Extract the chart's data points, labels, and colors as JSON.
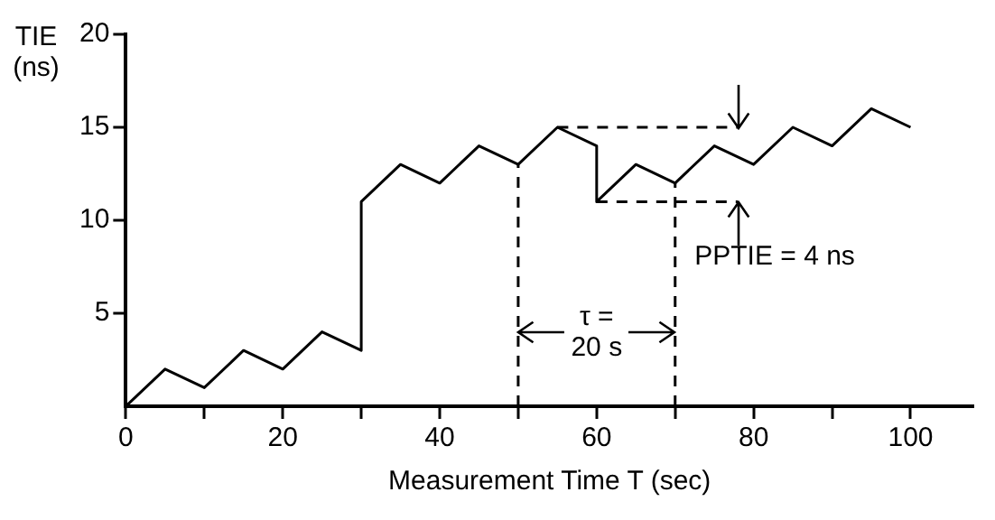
{
  "chart_data": {
    "type": "line",
    "xlabel": "Measurement Time T (sec)",
    "ylabel": "TIE (ns)",
    "series": [
      {
        "color": "#000000",
        "x": [
          0,
          5,
          10,
          15,
          20,
          25,
          30,
          30,
          35,
          40,
          45,
          50,
          55,
          60,
          60,
          65,
          70,
          75,
          80,
          85,
          90,
          95,
          100
        ],
        "values": [
          0,
          2,
          1,
          3,
          2,
          4,
          3,
          11,
          13,
          12,
          14,
          13,
          15,
          14,
          11,
          13,
          12,
          14,
          13,
          15,
          14,
          16,
          15
        ]
      },
      {
        "color": "#000000",
        "line_style": "dashed",
        "x": [
          50,
          50,
          null,
          70,
          70,
          null,
          55,
          78,
          null,
          60,
          78
        ],
        "values": [
          0,
          13,
          null,
          0,
          12,
          null,
          15,
          15,
          null,
          11,
          11
        ]
      }
    ],
    "xlim": [
      0,
      108
    ],
    "xticks": [
      0,
      {
        "value": 10,
        "label": null
      },
      20,
      {
        "value": 30,
        "label": null
      },
      40,
      {
        "value": 50,
        "label": null
      },
      60,
      {
        "value": 70,
        "label": null
      },
      80,
      {
        "value": 90,
        "label": null
      },
      100
    ],
    "ylim": [
      0,
      20
    ],
    "yticks": [
      5,
      10,
      15,
      20
    ],
    "grid": false,
    "legend": false,
    "marker": "none",
    "line_style": "solid",
    "annotations": [
      {
        "text": "τ = 20 s",
        "x": 60,
        "y": 4
      },
      "PPTIE = 4 ns"
    ]
  }
}
